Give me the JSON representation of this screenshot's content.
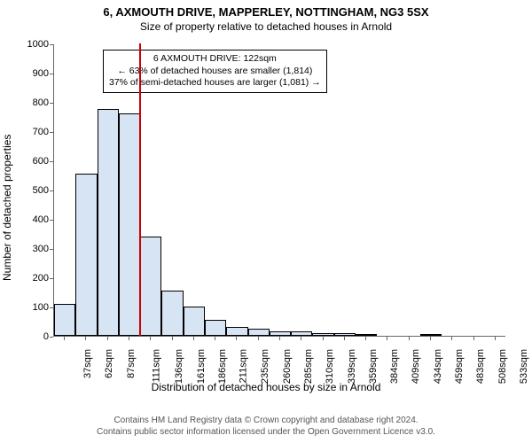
{
  "title": "6, AXMOUTH DRIVE, MAPPERLEY, NOTTINGHAM, NG3 5SX",
  "subtitle": "Size of property relative to detached houses in Arnold",
  "y_axis": {
    "label": "Number of detached properties",
    "min": 0,
    "max": 1000,
    "tick_step": 100,
    "ticks": [
      0,
      100,
      200,
      300,
      400,
      500,
      600,
      700,
      800,
      900,
      1000
    ]
  },
  "x_axis": {
    "label": "Distribution of detached houses by size in Arnold",
    "ticks": [
      "37sqm",
      "62sqm",
      "87sqm",
      "111sqm",
      "136sqm",
      "161sqm",
      "186sqm",
      "211sqm",
      "235sqm",
      "260sqm",
      "285sqm",
      "310sqm",
      "339sqm",
      "359sqm",
      "384sqm",
      "409sqm",
      "434sqm",
      "459sqm",
      "483sqm",
      "508sqm",
      "533sqm"
    ]
  },
  "bars": {
    "values": [
      110,
      555,
      775,
      760,
      340,
      155,
      100,
      55,
      30,
      25,
      15,
      15,
      10,
      10,
      5,
      0,
      0,
      5,
      0,
      0,
      0
    ],
    "fill_color": "#d7e4f4",
    "border_color": "#000000",
    "bar_width_frac": 1.0
  },
  "marker": {
    "position_sqm": 122,
    "color": "#cc0000"
  },
  "annotation": {
    "line1": "6 AXMOUTH DRIVE: 122sqm",
    "line2": "← 63% of detached houses are smaller (1,814)",
    "line3": "37% of semi-detached houses are larger (1,081) →"
  },
  "footer": {
    "line1": "Contains HM Land Registry data © Crown copyright and database right 2024.",
    "line2": "Contains public sector information licensed under the Open Government Licence v3.0."
  },
  "colors": {
    "background": "#ffffff",
    "axis": "#666666",
    "text": "#000000"
  },
  "fonts": {
    "title_size_pt": 13,
    "subtitle_size_pt": 12,
    "axis_label_size_pt": 12,
    "tick_size_pt": 11,
    "annotation_size_pt": 10.5,
    "footer_size_pt": 10
  }
}
